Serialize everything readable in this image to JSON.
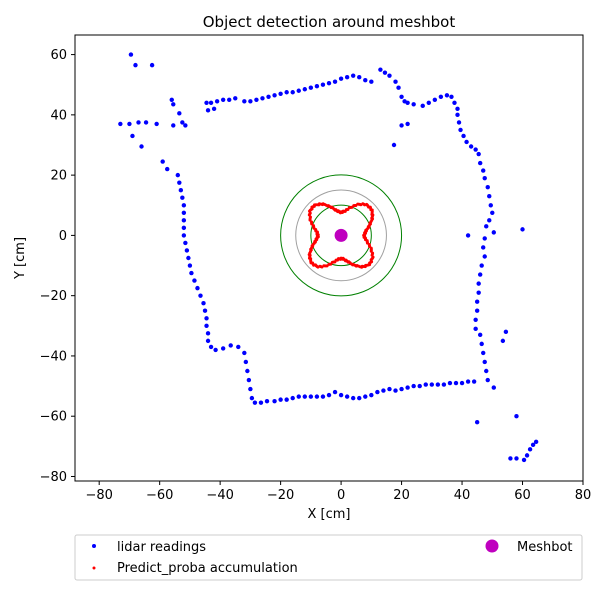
{
  "chart_data": {
    "type": "scatter",
    "title": "Object detection around meshbot",
    "xlabel": "X [cm]",
    "ylabel": "Y [cm]",
    "xlim": [
      -88,
      80
    ],
    "ylim": [
      -81.5,
      66.5
    ],
    "xticks": [
      -80,
      -60,
      -40,
      -20,
      0,
      20,
      40,
      60,
      80
    ],
    "yticks": [
      -80,
      -60,
      -40,
      -20,
      0,
      20,
      40,
      60
    ],
    "xtick_labels": [
      "−80",
      "−60",
      "−40",
      "−20",
      "0",
      "20",
      "40",
      "60",
      "80"
    ],
    "ytick_labels": [
      "−80",
      "−60",
      "−40",
      "−20",
      "0",
      "20",
      "40",
      "60"
    ],
    "grid": false,
    "legend_position": "below plot",
    "colors": {
      "lidar": "#0000ff",
      "predict": "#ff0000",
      "meshbot": "#bf00bf",
      "outer_circle": "#008000",
      "middle_circle": "#a0a0a0",
      "inner_circle": "#008000",
      "axes": "#000000"
    },
    "circles": [
      {
        "name": "outer",
        "center": [
          0,
          0
        ],
        "radius": 20
      },
      {
        "name": "middle",
        "center": [
          0,
          0
        ],
        "radius": 15
      },
      {
        "name": "inner",
        "center": [
          0,
          0
        ],
        "radius": 10
      }
    ],
    "series": [
      {
        "name": "lidar readings",
        "marker": "dot",
        "points": [
          [
            -69.5,
            60
          ],
          [
            -68,
            56.5
          ],
          [
            -62.5,
            56.5
          ],
          [
            -73,
            37
          ],
          [
            -70,
            37
          ],
          [
            -67,
            37.5
          ],
          [
            -64.5,
            37.5
          ],
          [
            -61,
            37
          ],
          [
            -69,
            33
          ],
          [
            -66,
            29.5
          ],
          [
            -56,
            45
          ],
          [
            -55.5,
            43.5
          ],
          [
            -53.5,
            40.5
          ],
          [
            -52.5,
            37.5
          ],
          [
            -51.5,
            36.5
          ],
          [
            -55.5,
            36.5
          ],
          [
            -44.5,
            44
          ],
          [
            -43,
            44
          ],
          [
            -41,
            44.5
          ],
          [
            -39,
            45
          ],
          [
            -37,
            45
          ],
          [
            -35,
            45.5
          ],
          [
            -44,
            41.5
          ],
          [
            -42,
            42
          ],
          [
            -32,
            44.5
          ],
          [
            -30,
            44.5
          ],
          [
            -28,
            45
          ],
          [
            -26,
            45.5
          ],
          [
            -24,
            46
          ],
          [
            -22,
            46.5
          ],
          [
            -20,
            47
          ],
          [
            -18,
            47.5
          ],
          [
            -16,
            47.5
          ],
          [
            -14,
            48
          ],
          [
            -12,
            48.5
          ],
          [
            -10,
            49
          ],
          [
            -8,
            49.5
          ],
          [
            -6,
            50
          ],
          [
            -4,
            50.5
          ],
          [
            -2,
            51
          ],
          [
            0,
            52
          ],
          [
            2,
            52.5
          ],
          [
            4,
            53
          ],
          [
            6,
            52.5
          ],
          [
            8,
            51.5
          ],
          [
            10,
            51
          ],
          [
            13,
            55
          ],
          [
            14.5,
            54
          ],
          [
            16,
            53
          ],
          [
            18,
            51
          ],
          [
            19,
            49
          ],
          [
            20,
            46
          ],
          [
            21,
            44.5
          ],
          [
            22,
            44
          ],
          [
            24,
            43.5
          ],
          [
            20,
            36.5
          ],
          [
            22,
            37
          ],
          [
            17.5,
            30
          ],
          [
            27,
            43
          ],
          [
            29,
            44
          ],
          [
            31,
            45
          ],
          [
            33,
            46
          ],
          [
            35,
            46.5
          ],
          [
            36.5,
            46
          ],
          [
            37.5,
            44
          ],
          [
            38.5,
            42
          ],
          [
            38.5,
            40
          ],
          [
            39,
            37.5
          ],
          [
            39.5,
            35
          ],
          [
            40.5,
            33
          ],
          [
            41.5,
            31
          ],
          [
            43,
            29.5
          ],
          [
            44.5,
            28.5
          ],
          [
            45.5,
            27
          ],
          [
            46,
            24
          ],
          [
            47,
            21.5
          ],
          [
            47.5,
            19
          ],
          [
            48.5,
            16
          ],
          [
            49,
            13
          ],
          [
            49.5,
            10
          ],
          [
            50,
            7.5
          ],
          [
            49,
            5
          ],
          [
            48,
            3
          ],
          [
            50.5,
            1
          ],
          [
            42,
            0
          ],
          [
            60,
            2
          ],
          [
            47.5,
            -1
          ],
          [
            47,
            -4
          ],
          [
            47.5,
            -7
          ],
          [
            46.5,
            -10
          ],
          [
            46,
            -13
          ],
          [
            45.5,
            -16
          ],
          [
            45.5,
            -19
          ],
          [
            45,
            -22
          ],
          [
            45,
            -25
          ],
          [
            44.5,
            -28
          ],
          [
            44.5,
            -31
          ],
          [
            46,
            -33
          ],
          [
            46.5,
            -36
          ],
          [
            47,
            -39
          ],
          [
            47.5,
            -42
          ],
          [
            48,
            -45
          ],
          [
            48.5,
            -48
          ],
          [
            54.5,
            -32
          ],
          [
            53.5,
            -35
          ],
          [
            50.5,
            -50.5
          ],
          [
            45,
            -62
          ],
          [
            58,
            -60
          ],
          [
            56,
            -74
          ],
          [
            58,
            -74
          ],
          [
            60.5,
            -74.5
          ],
          [
            61.5,
            -73
          ],
          [
            62.5,
            -71
          ],
          [
            63.5,
            -69.5
          ],
          [
            64.5,
            -68.5
          ],
          [
            -59,
            24.5
          ],
          [
            -57.5,
            22
          ],
          [
            -54,
            20
          ],
          [
            -53.5,
            17.5
          ],
          [
            -53,
            15
          ],
          [
            -52.5,
            12.5
          ],
          [
            -52,
            10
          ],
          [
            -52,
            7.5
          ],
          [
            -52,
            5
          ],
          [
            -52,
            2.5
          ],
          [
            -52,
            0
          ],
          [
            -51.5,
            -2.5
          ],
          [
            -51,
            -5
          ],
          [
            -50.5,
            -7.5
          ],
          [
            -50,
            -10
          ],
          [
            -49.5,
            -12.5
          ],
          [
            -48.5,
            -15
          ],
          [
            -47.5,
            -17.5
          ],
          [
            -46.5,
            -20
          ],
          [
            -45.5,
            -22.5
          ],
          [
            -45,
            -25
          ],
          [
            -44.5,
            -27.5
          ],
          [
            -44.5,
            -30
          ],
          [
            -44,
            -32.5
          ],
          [
            -44,
            -35
          ],
          [
            -43,
            -37
          ],
          [
            -41.5,
            -38
          ],
          [
            -39,
            -37.5
          ],
          [
            -36.5,
            -36.5
          ],
          [
            -34,
            -37
          ],
          [
            -32,
            -39
          ],
          [
            -31.5,
            -42
          ],
          [
            -31,
            -45
          ],
          [
            -30.5,
            -48
          ],
          [
            -30,
            -51
          ],
          [
            -29.5,
            -54
          ],
          [
            -28.5,
            -55.5
          ],
          [
            -26.5,
            -55.5
          ],
          [
            -24.5,
            -55
          ],
          [
            -22,
            -55
          ],
          [
            -20,
            -54.5
          ],
          [
            -18,
            -54.5
          ],
          [
            -16,
            -54
          ],
          [
            -14,
            -53.5
          ],
          [
            -12,
            -53.5
          ],
          [
            -10,
            -53.5
          ],
          [
            -8,
            -53.5
          ],
          [
            -6,
            -53.5
          ],
          [
            -4,
            -53
          ],
          [
            -2,
            -52
          ],
          [
            0,
            -53
          ],
          [
            2,
            -53.5
          ],
          [
            4,
            -54
          ],
          [
            6,
            -54
          ],
          [
            8,
            -53.5
          ],
          [
            10,
            -53
          ],
          [
            12,
            -52
          ],
          [
            14,
            -51.5
          ],
          [
            16,
            -51
          ],
          [
            18,
            -51.5
          ],
          [
            20,
            -51
          ],
          [
            22,
            -50.5
          ],
          [
            24,
            -50
          ],
          [
            26,
            -50
          ],
          [
            28,
            -49.5
          ],
          [
            30,
            -49.5
          ],
          [
            32,
            -49.5
          ],
          [
            34,
            -49.5
          ],
          [
            36,
            -49
          ],
          [
            38,
            -49
          ],
          [
            40,
            -49
          ],
          [
            42,
            -48.5
          ],
          [
            44,
            -48.5
          ]
        ]
      },
      {
        "name": "Predict_proba accumulation",
        "marker": "small dot"
      },
      {
        "name": "Meshbot",
        "marker": "large circle",
        "points": [
          [
            0,
            0
          ]
        ]
      }
    ],
    "predict_curve": {
      "shape": "closed four-lobed loop around the robot",
      "base_radius": 10.5,
      "lobe_amplitude": 2.8,
      "lobe_count": 4,
      "lobe_phase_deg": 45
    }
  }
}
